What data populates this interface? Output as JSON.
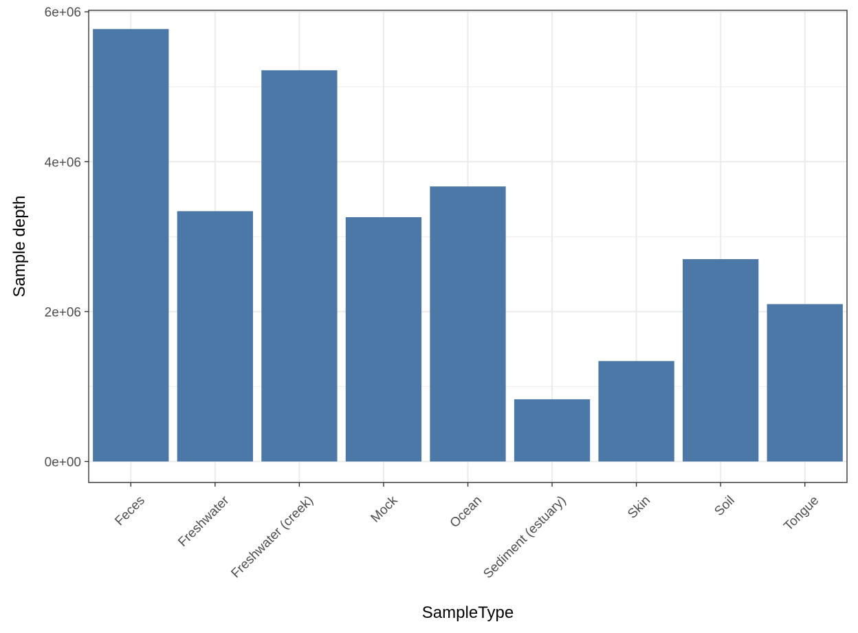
{
  "chart_data": {
    "type": "bar",
    "xlabel": "SampleType",
    "ylabel": "Sample depth",
    "categories": [
      "Feces",
      "Freshwater",
      "Freshwater (creek)",
      "Mock",
      "Ocean",
      "Sediment (estuary)",
      "Skin",
      "Soil",
      "Tongue"
    ],
    "values": [
      5770000,
      3340000,
      5220000,
      3260000,
      3670000,
      830000,
      1340000,
      2700000,
      2100000
    ],
    "ylim": [
      -280000,
      6020000
    ],
    "y_ticks": [
      0,
      2000000,
      4000000,
      6000000
    ],
    "y_tick_labels": [
      "0e+00",
      "2e+06",
      "4e+06",
      "6e+06"
    ],
    "y_minor_ticks": [
      1000000,
      3000000,
      5000000
    ],
    "grid": true,
    "bar_color": "#4B78A6",
    "grid_color": "#EBEBEB",
    "panel_border_color": "#333333"
  }
}
